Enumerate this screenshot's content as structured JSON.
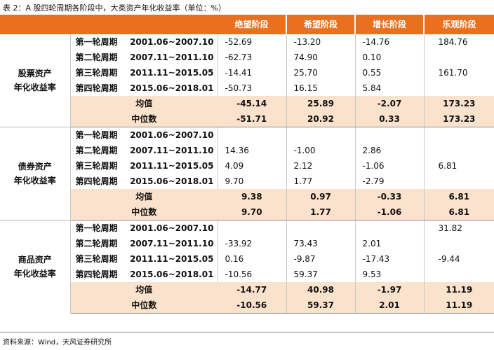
{
  "caption": "表 2：A 股四轮周期各阶段中，大类资产年化收益率（单位：%）",
  "headers": [
    "绝望阶段",
    "希望阶段",
    "增长阶段",
    "乐观阶段"
  ],
  "source": "资料来源：Wind，天风证券研究所",
  "groups": [
    {
      "label_line1": "股票资产",
      "label_line2": "年化收益率",
      "rows": [
        {
          "cycle": "第一轮周期",
          "dates": "2001.06~2007.10",
          "values": [
            "-52.69",
            "-13.20",
            "-14.76",
            "184.76"
          ]
        },
        {
          "cycle": "第二轮周期",
          "dates": "2007.11~2011.10",
          "values": [
            "-62.73",
            "74.90",
            "0.10",
            ""
          ]
        },
        {
          "cycle": "第三轮周期",
          "dates": "2011.11~2015.05",
          "values": [
            "-14.41",
            "25.70",
            "0.55",
            "161.70"
          ]
        },
        {
          "cycle": "第四轮周期",
          "dates": "2015.06~2018.01",
          "values": [
            "-50.73",
            "16.15",
            "5.84",
            ""
          ]
        }
      ],
      "mean": {
        "label": "均值",
        "values": [
          "-45.14",
          "25.89",
          "-2.07",
          "173.23"
        ]
      },
      "median": {
        "label": "中位数",
        "values": [
          "-51.71",
          "20.92",
          "0.33",
          "173.23"
        ]
      }
    },
    {
      "label_line1": "债券资产",
      "label_line2": "年化收益率",
      "rows": [
        {
          "cycle": "第一轮周期",
          "dates": "2001.06~2007.10",
          "values": [
            "",
            "",
            "",
            ""
          ]
        },
        {
          "cycle": "第二轮周期",
          "dates": "2007.11~2011.10",
          "values": [
            "14.36",
            "-1.00",
            "2.86",
            ""
          ]
        },
        {
          "cycle": "第三轮周期",
          "dates": "2011.11~2015.05",
          "values": [
            "4.09",
            "2.12",
            "-1.06",
            "6.81"
          ]
        },
        {
          "cycle": "第四轮周期",
          "dates": "2015.06~2018.01",
          "values": [
            "9.70",
            "1.77",
            "-2.79",
            ""
          ]
        }
      ],
      "mean": {
        "label": "均值",
        "values": [
          "9.38",
          "0.97",
          "-0.33",
          "6.81"
        ]
      },
      "median": {
        "label": "中位数",
        "values": [
          "9.70",
          "1.77",
          "-1.06",
          "6.81"
        ]
      }
    },
    {
      "label_line1": "商品资产",
      "label_line2": "年化收益率",
      "rows": [
        {
          "cycle": "第一轮周期",
          "dates": "2001.06~2007.10",
          "values": [
            "",
            "",
            "",
            "31.82"
          ]
        },
        {
          "cycle": "第二轮周期",
          "dates": "2007.11~2011.10",
          "values": [
            "-33.92",
            "73.43",
            "2.01",
            ""
          ]
        },
        {
          "cycle": "第三轮周期",
          "dates": "2011.11~2015.05",
          "values": [
            "0.16",
            "-9.87",
            "-17.43",
            "-9.44"
          ]
        },
        {
          "cycle": "第四轮周期",
          "dates": "2015.06~2018.01",
          "values": [
            "-10.56",
            "59.37",
            "9.53",
            ""
          ]
        }
      ],
      "mean": {
        "label": "均值",
        "values": [
          "-14.77",
          "40.98",
          "-1.97",
          "11.19"
        ]
      },
      "median": {
        "label": "中位数",
        "values": [
          "-10.56",
          "59.37",
          "2.01",
          "11.19"
        ]
      }
    }
  ]
}
